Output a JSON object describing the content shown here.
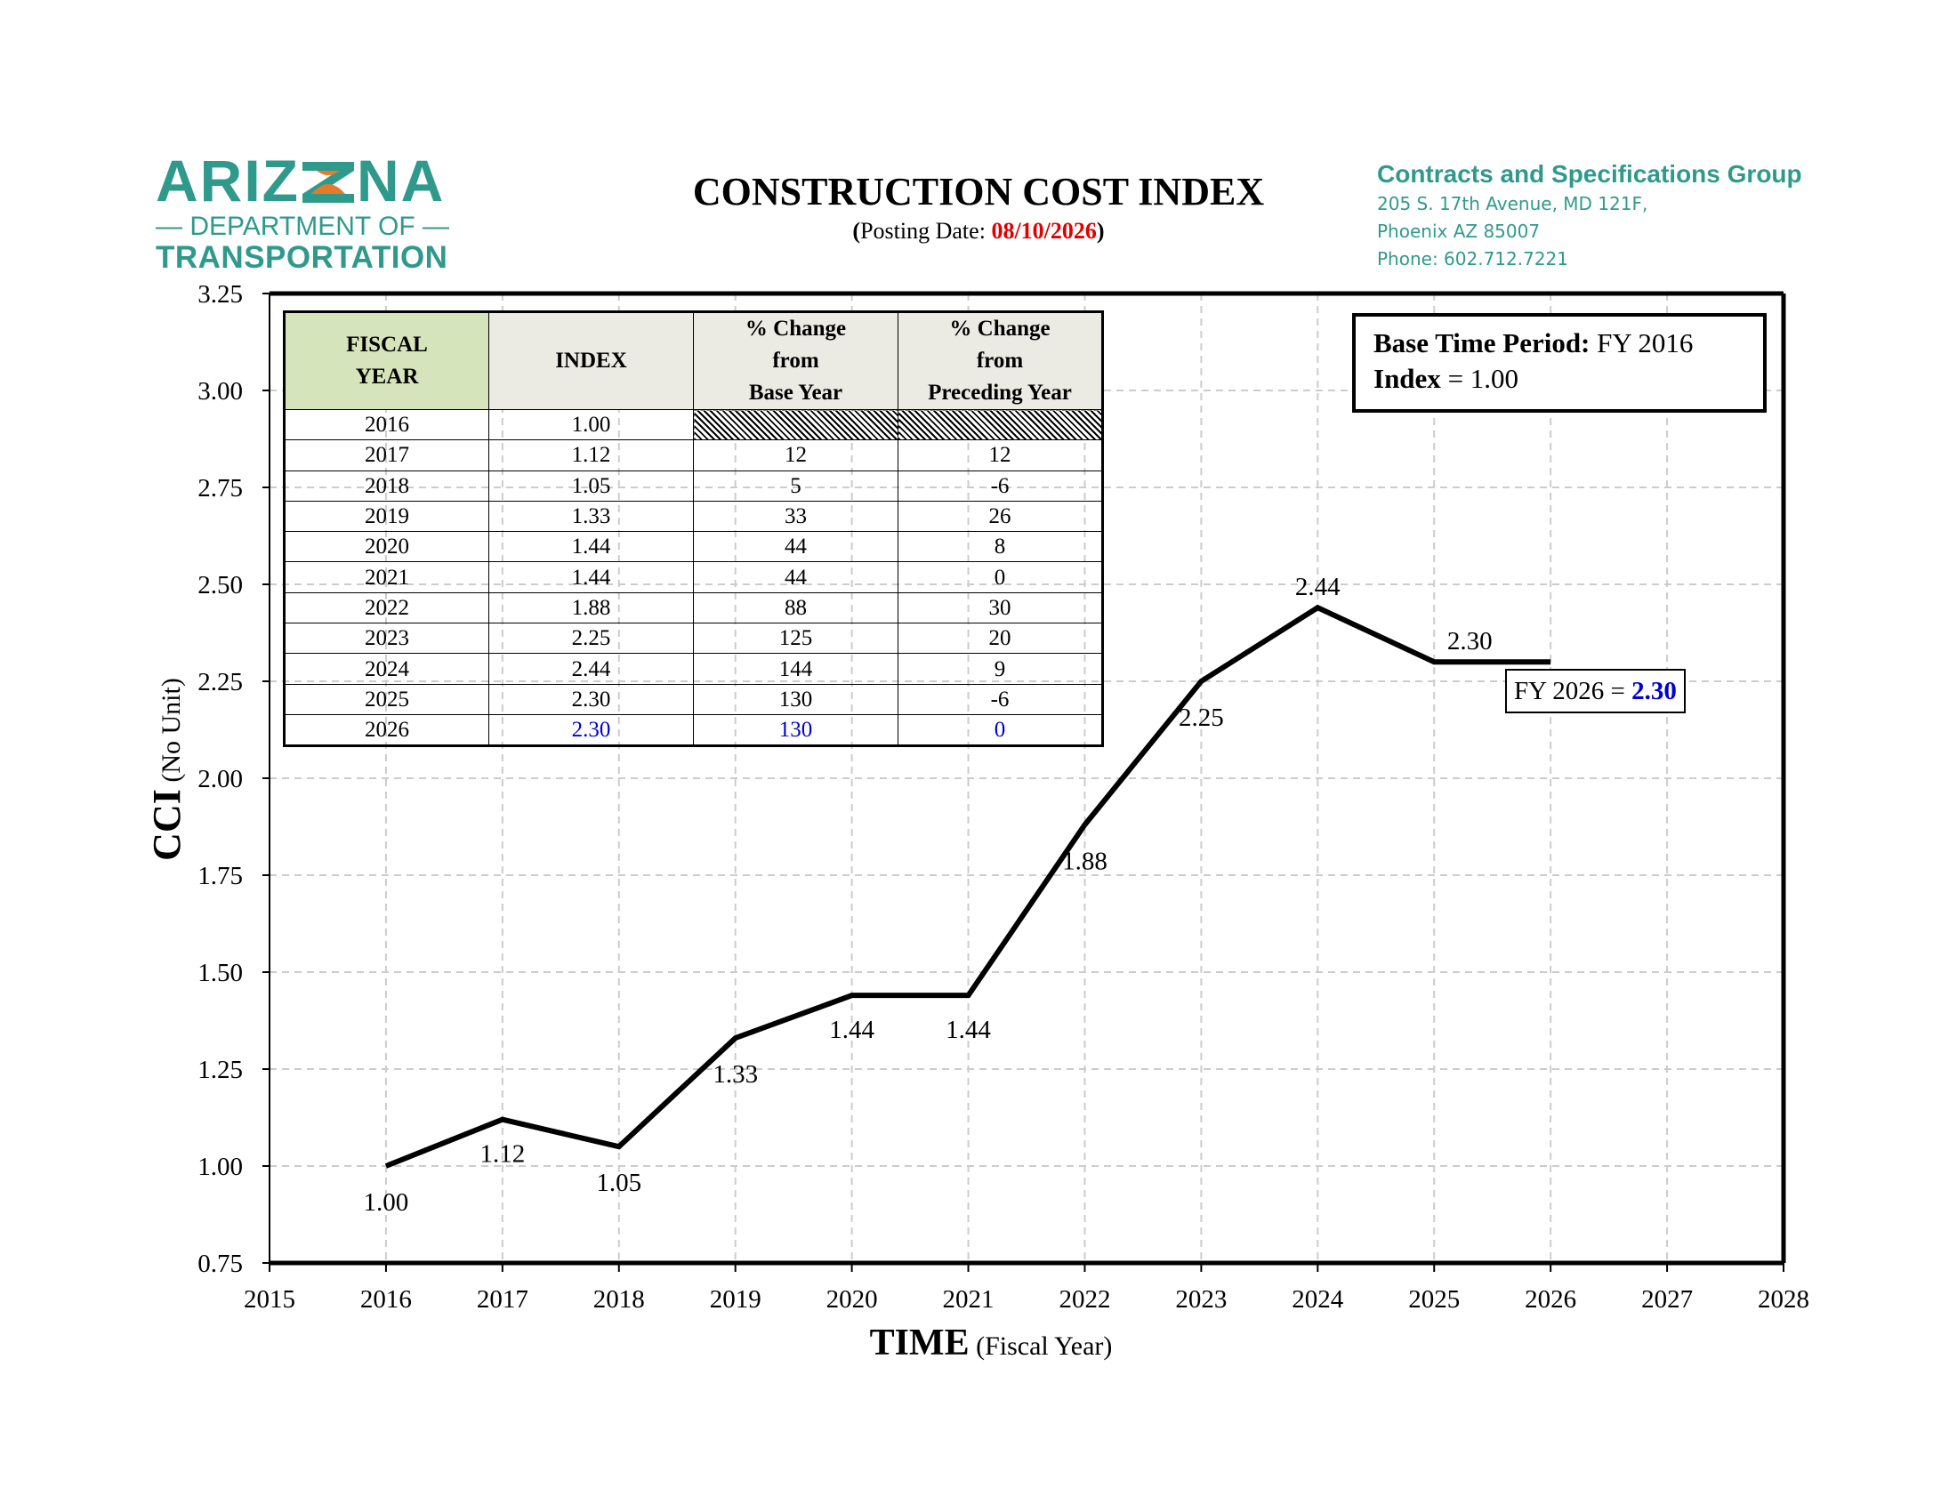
{
  "logo": {
    "letters_left": "ARIZ",
    "letters_right": "NA",
    "sub": "— DEPARTMENT OF —",
    "trans": "TRANSPORTATION"
  },
  "header": {
    "title": "CONSTRUCTION COST INDEX",
    "posting_prefix": "Posting Date: ",
    "posting_date": "08/10/2026"
  },
  "contact": {
    "title": "Contracts and Specifications Group",
    "lines": [
      "205 S. 17th Avenue, MD 121F,",
      "Phoenix AZ 85007",
      "Phone: 602.712.7221"
    ]
  },
  "table": {
    "headers": {
      "fy_1": "FISCAL",
      "fy_2": "YEAR",
      "index": "INDEX",
      "base_1": "% Change",
      "base_2": "from",
      "base_3": "Base Year",
      "prec_1": "% Change",
      "prec_2": "from",
      "prec_3": "Preceding Year"
    },
    "rows": [
      {
        "year": "2016",
        "index": "1.00",
        "base": "",
        "prec": ""
      },
      {
        "year": "2017",
        "index": "1.12",
        "base": "12",
        "prec": "12"
      },
      {
        "year": "2018",
        "index": "1.05",
        "base": "5",
        "prec": "-6"
      },
      {
        "year": "2019",
        "index": "1.33",
        "base": "33",
        "prec": "26"
      },
      {
        "year": "2020",
        "index": "1.44",
        "base": "44",
        "prec": "8"
      },
      {
        "year": "2021",
        "index": "1.44",
        "base": "44",
        "prec": "0"
      },
      {
        "year": "2022",
        "index": "1.88",
        "base": "88",
        "prec": "30"
      },
      {
        "year": "2023",
        "index": "2.25",
        "base": "125",
        "prec": "20"
      },
      {
        "year": "2024",
        "index": "2.44",
        "base": "144",
        "prec": "9"
      },
      {
        "year": "2025",
        "index": "2.30",
        "base": "130",
        "prec": "-6"
      },
      {
        "year": "2026",
        "index": "2.30",
        "base": "130",
        "prec": "0"
      }
    ]
  },
  "base_box": {
    "line1_label": "Base Time Period:",
    "line1_value": " FY 2016",
    "line2_label": "Index",
    "line2_value": " = 1.00"
  },
  "callout": {
    "label": "FY 2026 = ",
    "value": "2.30"
  },
  "chart_data": {
    "type": "line",
    "xlabel_main": "TIME",
    "xlabel_sub": "(Fiscal Year)",
    "ylabel_main": "CCI",
    "ylabel_sub": "(No Unit)",
    "xlim": [
      2015,
      2028
    ],
    "ylim": [
      0.75,
      3.25
    ],
    "x_ticks": [
      2015,
      2016,
      2017,
      2018,
      2019,
      2020,
      2021,
      2022,
      2023,
      2024,
      2025,
      2026,
      2027,
      2028
    ],
    "y_ticks": [
      "0.75",
      "1.00",
      "1.25",
      "1.50",
      "1.75",
      "2.00",
      "2.25",
      "2.50",
      "2.75",
      "3.00",
      "3.25"
    ],
    "grid": true,
    "series": [
      {
        "x": [
          2016,
          2017,
          2018,
          2019,
          2020,
          2021,
          2022,
          2023,
          2024,
          2025,
          2026
        ],
        "values": [
          1.0,
          1.12,
          1.05,
          1.33,
          1.44,
          1.44,
          1.88,
          2.25,
          2.44,
          2.3,
          2.3
        ],
        "labels": [
          "1.00",
          "1.12",
          "1.05",
          "1.33",
          "1.44",
          "1.44",
          "1.88",
          "2.25",
          "2.44",
          "2.30",
          ""
        ]
      }
    ],
    "colors": {
      "line": "#000000",
      "grid": "#cccccc",
      "highlight": "#0000d0",
      "date": "#e00000",
      "brand": "#2f9a8c"
    }
  }
}
